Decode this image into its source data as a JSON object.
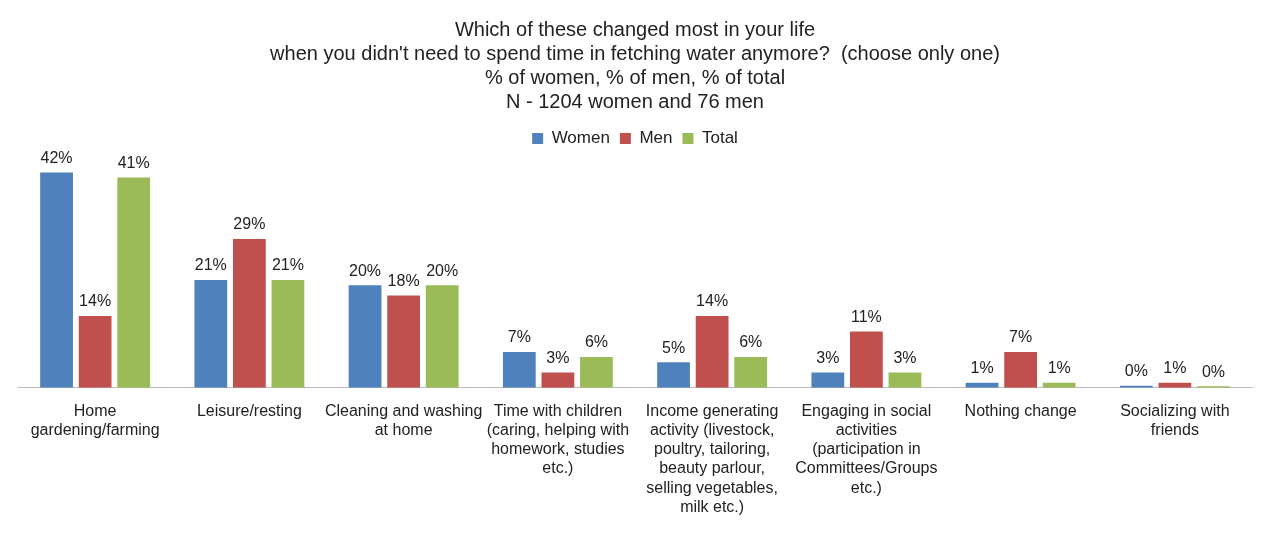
{
  "chart_data": {
    "type": "bar",
    "title": "Which of these changed most in your life\nwhen you didn't need to spend time in fetching water anymore?  (choose only one)",
    "subtitle": "% of women, % of men, % of total\nN - 1204 women and 76 men",
    "categories": [
      "Home gardening/farming",
      "Leisure/resting",
      "Cleaning and washing at home",
      "Time with children (caring, helping with homework, studies etc.)",
      "Income generating activity (livestock, poultry, tailoring, beauty parlour, selling vegetables, milk etc.)",
      "Engaging in social activities (participation in Committees/Groups etc.)",
      "Nothing change",
      "Socializing with friends"
    ],
    "series": [
      {
        "name": "Women",
        "color": "#4f81bd",
        "values": [
          42,
          21,
          20,
          7,
          5,
          3,
          1,
          0.4
        ],
        "value_labels": [
          "42%",
          "21%",
          "20%",
          "7%",
          "5%",
          "3%",
          "1%",
          "0%"
        ]
      },
      {
        "name": "Men",
        "color": "#c0504d",
        "values": [
          14,
          29,
          18,
          3,
          14,
          11,
          7,
          1
        ],
        "value_labels": [
          "14%",
          "29%",
          "18%",
          "3%",
          "14%",
          "11%",
          "7%",
          "1%"
        ]
      },
      {
        "name": "Total",
        "color": "#9bbb59",
        "values": [
          41,
          21,
          20,
          6,
          6,
          3,
          1,
          0.3
        ],
        "value_labels": [
          "41%",
          "21%",
          "20%",
          "6%",
          "6%",
          "3%",
          "1%",
          "0%"
        ]
      }
    ],
    "legend": "top",
    "grid": false,
    "tick_labels": "x"
  }
}
